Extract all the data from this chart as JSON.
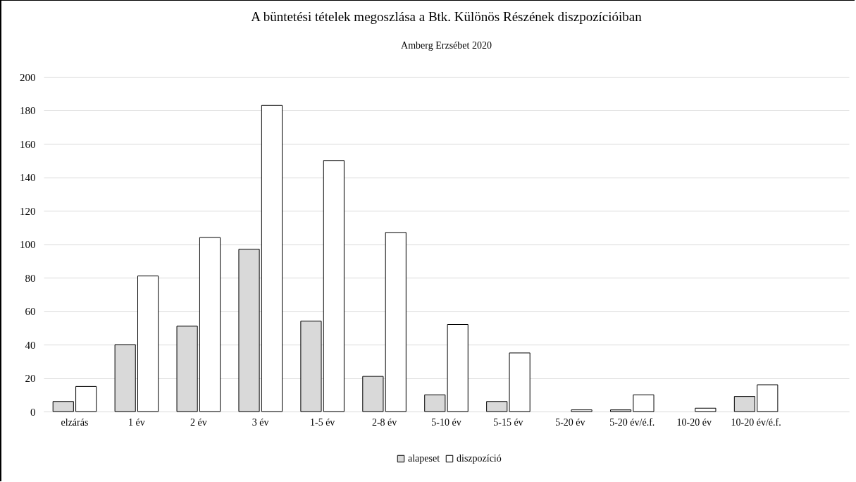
{
  "chart_data": {
    "type": "bar",
    "title": "A büntetési tételek megoszlása a Btk. Különös Részének diszpozícióiban",
    "subtitle": "Amberg Erzsébet 2020",
    "categories": [
      "elzárás",
      "1 év",
      "2 év",
      "3 év",
      "1-5 év",
      "2-8 év",
      "5-10 év",
      "5-15 év",
      "5-20 év",
      "5-20 év/é.f.",
      "10-20 év",
      "10-20 év/é.f.",
      null
    ],
    "series": [
      {
        "name": "alapeset",
        "color": "#d9d9d9",
        "values": [
          6,
          40,
          51,
          97,
          54,
          21,
          10,
          6,
          null,
          1,
          null,
          9,
          null
        ]
      },
      {
        "name": "diszpozíció",
        "color": "#ffffff",
        "values": [
          15,
          81,
          104,
          183,
          150,
          107,
          52,
          35,
          1,
          10,
          2,
          16,
          null
        ]
      }
    ],
    "ylim": [
      0,
      200
    ],
    "yticks": [
      0,
      20,
      40,
      60,
      80,
      100,
      120,
      140,
      160,
      180,
      200
    ],
    "grid": "y",
    "legend": "bottom"
  }
}
